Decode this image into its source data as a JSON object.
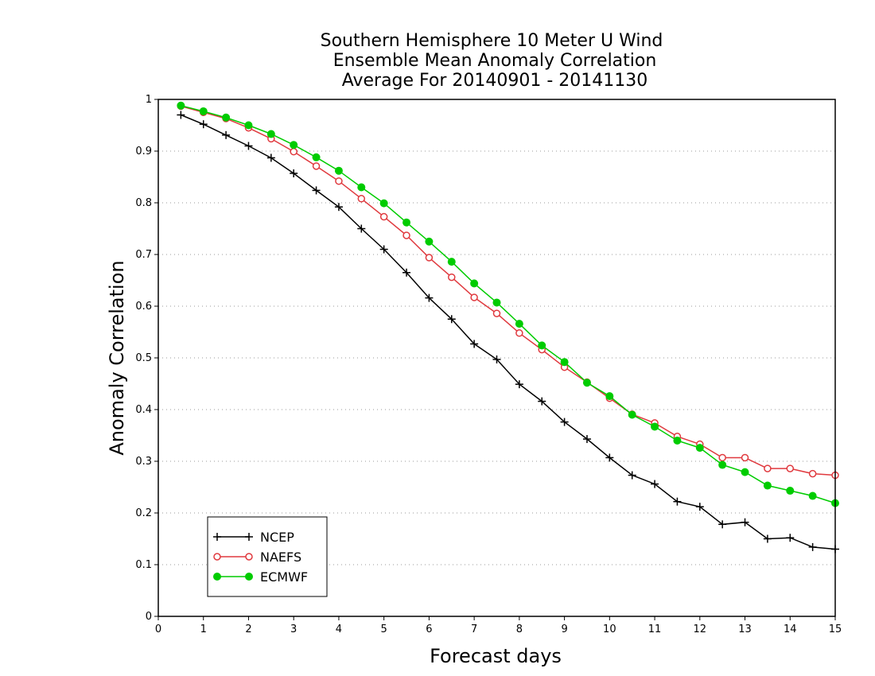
{
  "chart_data": {
    "type": "line",
    "title": [
      "Southern Hemisphere 10 Meter U Wind",
      "Ensemble Mean Anomaly Correlation",
      "Average For 20140901 - 20141130"
    ],
    "xlabel": "Forecast days",
    "ylabel": "Anomaly Correlation",
    "xlim": [
      0,
      15
    ],
    "ylim": [
      0,
      1
    ],
    "xticks": [
      0,
      1,
      2,
      3,
      4,
      5,
      6,
      7,
      8,
      9,
      10,
      11,
      12,
      13,
      14,
      15
    ],
    "xtick_labels": [
      "0",
      "1",
      "2",
      "3",
      "4",
      "5",
      "6",
      "7",
      "8",
      "9",
      "10",
      "11",
      "12",
      "13",
      "14",
      "15"
    ],
    "yticks": [
      0,
      0.1,
      0.2,
      0.3,
      0.4,
      0.5,
      0.6,
      0.7,
      0.8,
      0.9,
      1
    ],
    "ytick_labels": [
      "0",
      "0.1",
      "0.2",
      "0.3",
      "0.4",
      "0.5",
      "0.6",
      "0.7",
      "0.8",
      "0.9",
      "1"
    ],
    "grid": "horizontal-dotted",
    "legend_position": "bottom-left",
    "x": [
      0.5,
      1,
      1.5,
      2,
      2.5,
      3,
      3.5,
      4,
      4.5,
      5,
      5.5,
      6,
      6.5,
      7,
      7.5,
      8,
      8.5,
      9,
      9.5,
      10,
      10.5,
      11,
      11.5,
      12,
      12.5,
      13,
      13.5,
      14,
      14.5,
      15
    ],
    "series": [
      {
        "name": "NCEP",
        "color": "#000000",
        "marker": "plus",
        "values": [
          0.97,
          0.952,
          0.931,
          0.91,
          0.887,
          0.857,
          0.824,
          0.792,
          0.75,
          0.71,
          0.665,
          0.616,
          0.575,
          0.527,
          0.497,
          0.449,
          0.416,
          0.376,
          0.343,
          0.307,
          0.273,
          0.256,
          0.222,
          0.212,
          0.178,
          0.182,
          0.15,
          0.152,
          0.134,
          0.13
        ]
      },
      {
        "name": "NAEFS",
        "color": "#e0393e",
        "marker": "open-circle",
        "values": [
          0.987,
          0.975,
          0.963,
          0.945,
          0.924,
          0.899,
          0.871,
          0.842,
          0.808,
          0.773,
          0.737,
          0.694,
          0.656,
          0.617,
          0.586,
          0.548,
          0.516,
          0.482,
          0.453,
          0.422,
          0.391,
          0.374,
          0.348,
          0.333,
          0.307,
          0.307,
          0.286,
          0.286,
          0.276,
          0.273
        ]
      },
      {
        "name": "ECMWF",
        "color": "#00cc00",
        "marker": "filled-circle",
        "values": [
          0.988,
          0.977,
          0.965,
          0.95,
          0.933,
          0.912,
          0.888,
          0.862,
          0.83,
          0.799,
          0.762,
          0.725,
          0.686,
          0.644,
          0.607,
          0.566,
          0.524,
          0.492,
          0.452,
          0.426,
          0.39,
          0.367,
          0.34,
          0.326,
          0.293,
          0.279,
          0.253,
          0.243,
          0.233,
          0.219
        ]
      }
    ]
  }
}
